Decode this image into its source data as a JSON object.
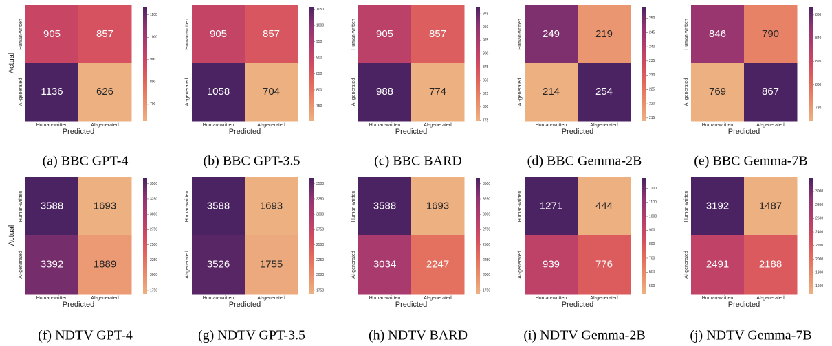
{
  "chart_data": [
    {
      "type": "heatmap",
      "caption": "(a) BBC GPT-4",
      "x_label": "Predicted",
      "y_label": "Actual",
      "x_categories": [
        "Human-written",
        "AI-generated"
      ],
      "y_categories": [
        "Human-written",
        "AI-generated"
      ],
      "z": [
        [
          905,
          857
        ],
        [
          1136,
          626
        ]
      ],
      "clim": [
        626,
        1136
      ],
      "cticks": [
        700,
        800,
        900,
        1000,
        1100
      ],
      "colormap": [
        "#edb081",
        "#e98d6b",
        "#e3685c",
        "#d14a61",
        "#b13c6c",
        "#8f3371",
        "#4b2362"
      ]
    },
    {
      "type": "heatmap",
      "caption": "(b) BBC GPT-3.5",
      "x_label": "Predicted",
      "x_categories": [
        "Human-written",
        "AI-generated"
      ],
      "y_categories": [
        "Human-written",
        "AI-generated"
      ],
      "z": [
        [
          905,
          857
        ],
        [
          1058,
          704
        ]
      ],
      "clim": [
        704,
        1058
      ],
      "cticks": [
        750,
        800,
        850,
        900,
        950,
        1000,
        1050
      ],
      "colormap": [
        "#edb081",
        "#e98d6b",
        "#e3685c",
        "#d14a61",
        "#b13c6c",
        "#8f3371",
        "#4b2362"
      ]
    },
    {
      "type": "heatmap",
      "caption": "(c) BBC BARD",
      "x_label": "Predicted",
      "x_categories": [
        "Human-written",
        "AI-generated"
      ],
      "y_categories": [
        "Human-written",
        "AI-generated"
      ],
      "z": [
        [
          905,
          857
        ],
        [
          988,
          774
        ]
      ],
      "clim": [
        774,
        988
      ],
      "cticks": [
        775,
        800,
        825,
        850,
        875,
        900,
        925,
        950,
        975
      ],
      "colormap": [
        "#edb081",
        "#e98d6b",
        "#e3685c",
        "#d14a61",
        "#b13c6c",
        "#8f3371",
        "#4b2362"
      ]
    },
    {
      "type": "heatmap",
      "caption": "(d) BBC Gemma-2B",
      "x_label": "Predicted",
      "x_categories": [
        "Human-written",
        "AI-generated"
      ],
      "y_categories": [
        "Human-written",
        "AI-generated"
      ],
      "z": [
        [
          249,
          219
        ],
        [
          214,
          254
        ]
      ],
      "clim": [
        214,
        254
      ],
      "cticks": [
        215,
        220,
        225,
        230,
        235,
        240,
        245,
        250
      ],
      "colormap": [
        "#edb081",
        "#e98d6b",
        "#e3685c",
        "#d14a61",
        "#b13c6c",
        "#8f3371",
        "#4b2362"
      ]
    },
    {
      "type": "heatmap",
      "caption": "(e) BBC Gemma-7B",
      "x_label": "Predicted",
      "x_categories": [
        "Human-written",
        "AI-generated"
      ],
      "y_categories": [
        "Human-written",
        "AI-generated"
      ],
      "z": [
        [
          846,
          790
        ],
        [
          769,
          867
        ]
      ],
      "clim": [
        769,
        867
      ],
      "cticks": [
        780,
        800,
        820,
        840,
        860
      ],
      "colormap": [
        "#edb081",
        "#e98d6b",
        "#e3685c",
        "#d14a61",
        "#b13c6c",
        "#8f3371",
        "#4b2362"
      ]
    },
    {
      "type": "heatmap",
      "caption": "(f) NDTV GPT-4",
      "x_label": "Predicted",
      "y_label": "Actual",
      "x_categories": [
        "Human-written",
        "AI-generated"
      ],
      "y_categories": [
        "Human-written",
        "AI-generated"
      ],
      "z": [
        [
          3588,
          1693
        ],
        [
          3392,
          1889
        ]
      ],
      "clim": [
        1693,
        3588
      ],
      "cticks": [
        1750,
        2000,
        2250,
        2500,
        2750,
        3000,
        3250,
        3500
      ],
      "colormap": [
        "#edb081",
        "#e98d6b",
        "#e3685c",
        "#d14a61",
        "#b13c6c",
        "#8f3371",
        "#4b2362"
      ]
    },
    {
      "type": "heatmap",
      "caption": "(g) NDTV GPT-3.5",
      "x_label": "Predicted",
      "x_categories": [
        "Human-written",
        "AI-generated"
      ],
      "y_categories": [
        "Human-written",
        "AI-generated"
      ],
      "z": [
        [
          3588,
          1693
        ],
        [
          3526,
          1755
        ]
      ],
      "clim": [
        1693,
        3588
      ],
      "cticks": [
        1750,
        2000,
        2250,
        2500,
        2750,
        3000,
        3250,
        3500
      ],
      "colormap": [
        "#edb081",
        "#e98d6b",
        "#e3685c",
        "#d14a61",
        "#b13c6c",
        "#8f3371",
        "#4b2362"
      ]
    },
    {
      "type": "heatmap",
      "caption": "(h) NDTV BARD",
      "x_label": "Predicted",
      "x_categories": [
        "Human-written",
        "AI-generated"
      ],
      "y_categories": [
        "Human-written",
        "AI-generated"
      ],
      "z": [
        [
          3588,
          1693
        ],
        [
          3034,
          2247
        ]
      ],
      "clim": [
        1693,
        3588
      ],
      "cticks": [
        1750,
        2000,
        2250,
        2500,
        2750,
        3000,
        3250,
        3500
      ],
      "colormap": [
        "#edb081",
        "#e98d6b",
        "#e3685c",
        "#d14a61",
        "#b13c6c",
        "#8f3371",
        "#4b2362"
      ]
    },
    {
      "type": "heatmap",
      "caption": "(i) NDTV Gemma-2B",
      "x_label": "Predicted",
      "x_categories": [
        "Human-written",
        "AI-generated"
      ],
      "y_categories": [
        "Human-written",
        "AI-generated"
      ],
      "z": [
        [
          1271,
          444
        ],
        [
          939,
          776
        ]
      ],
      "clim": [
        444,
        1271
      ],
      "cticks": [
        500,
        600,
        700,
        800,
        900,
        1000,
        1100,
        1200
      ],
      "colormap": [
        "#edb081",
        "#e98d6b",
        "#e3685c",
        "#d14a61",
        "#b13c6c",
        "#8f3371",
        "#4b2362"
      ]
    },
    {
      "type": "heatmap",
      "caption": "(j) NDTV Gemma-7B",
      "x_label": "Predicted",
      "x_categories": [
        "Human-written",
        "AI-generated"
      ],
      "y_categories": [
        "Human-written",
        "AI-generated"
      ],
      "z": [
        [
          3192,
          1487
        ],
        [
          2491,
          2188
        ]
      ],
      "clim": [
        1487,
        3192
      ],
      "cticks": [
        1600,
        1800,
        2000,
        2200,
        2400,
        2600,
        2800,
        3000
      ],
      "colormap": [
        "#edb081",
        "#e98d6b",
        "#e3685c",
        "#d14a61",
        "#b13c6c",
        "#8f3371",
        "#4b2362"
      ]
    }
  ]
}
